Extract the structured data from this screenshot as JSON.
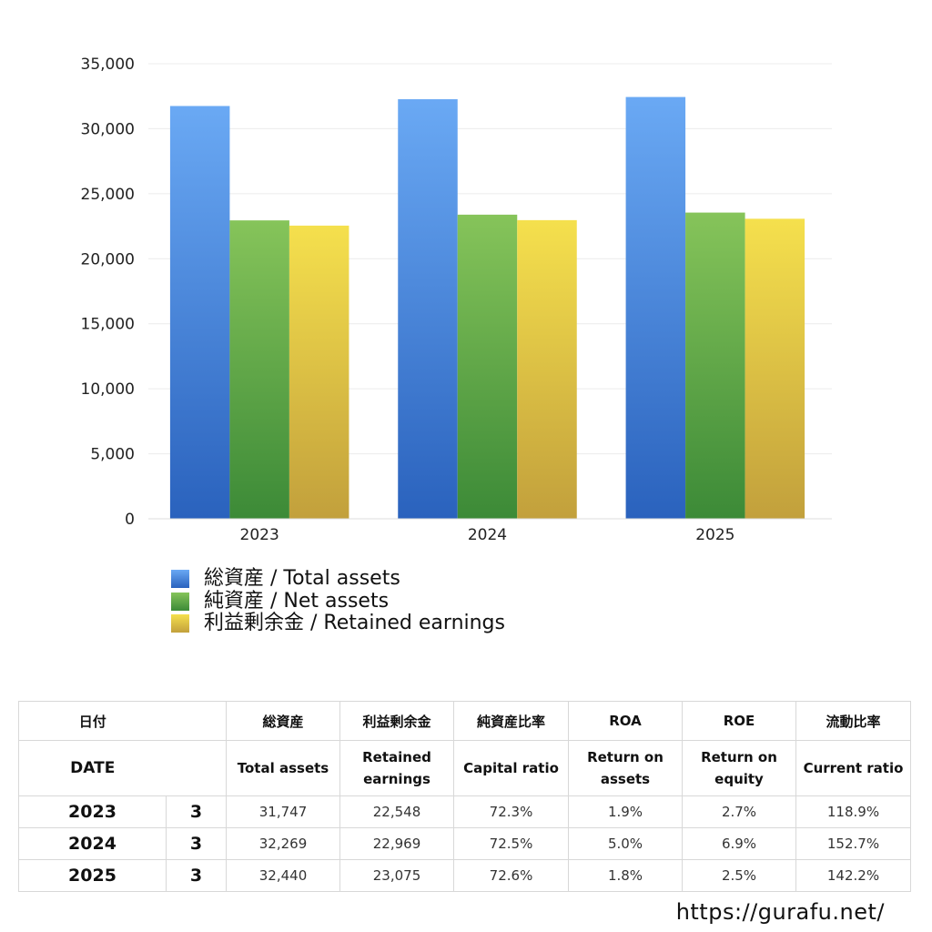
{
  "chart_data": {
    "type": "bar",
    "categories": [
      "2023",
      "2024",
      "2025"
    ],
    "series": [
      {
        "name": "総資産 / Total assets",
        "values": [
          31747,
          32269,
          32440
        ],
        "color_top": "#6aa9f4",
        "color_bottom": "#2a62bd"
      },
      {
        "name": "純資産 / Net assets",
        "values": [
          22950,
          23390,
          23550
        ],
        "color_top": "#86c45a",
        "color_bottom": "#3c8a37"
      },
      {
        "name": "利益剰余金 / Retained earnings",
        "values": [
          22548,
          22969,
          23075
        ],
        "color_top": "#f5e04d",
        "color_bottom": "#c2a03c"
      }
    ],
    "yticks": [
      "0",
      "5,000",
      "10,000",
      "15,000",
      "20,000",
      "25,000",
      "30,000",
      "35,000"
    ],
    "ylim": [
      0,
      35000
    ],
    "grid": true,
    "legend_position": "bottom-left"
  },
  "table": {
    "headers_jp": [
      "日付",
      "",
      "総資産",
      "利益剰余金",
      "純資産比率",
      "ROA",
      "ROE",
      "流動比率"
    ],
    "headers_en": [
      "DATE",
      "",
      "Total assets",
      "Retained earnings",
      "Capital ratio",
      "Return on assets",
      "Return on equity",
      "Current ratio"
    ],
    "rows": [
      [
        "2023",
        "3",
        "31,747",
        "22,548",
        "72.3%",
        "1.9%",
        "2.7%",
        "118.9%"
      ],
      [
        "2024",
        "3",
        "32,269",
        "22,969",
        "72.5%",
        "5.0%",
        "6.9%",
        "152.7%"
      ],
      [
        "2025",
        "3",
        "32,440",
        "23,075",
        "72.6%",
        "1.8%",
        "2.5%",
        "142.2%"
      ]
    ]
  },
  "watermark": "https://gurafu.net/"
}
